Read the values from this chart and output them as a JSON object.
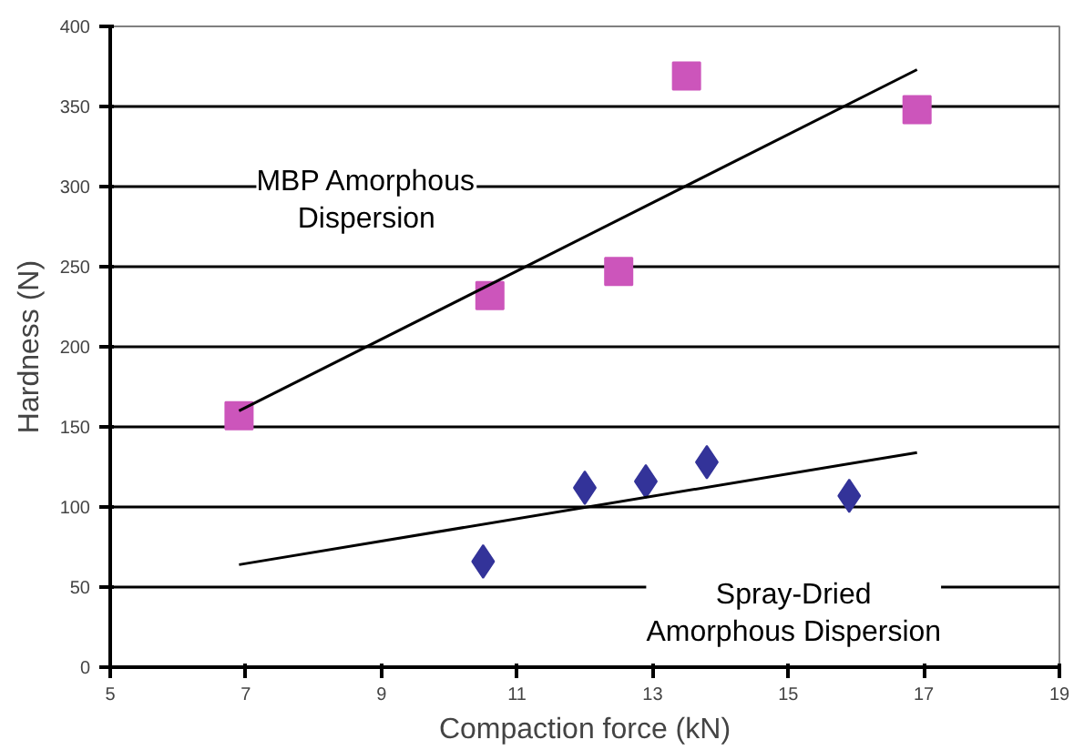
{
  "chart_data": {
    "type": "scatter",
    "xlabel": "Compaction force (kN)",
    "ylabel": "Hardness (N)",
    "xlim": [
      5,
      19
    ],
    "xticks": [
      5,
      7,
      9,
      11,
      13,
      15,
      17,
      19
    ],
    "ylim": [
      0,
      400
    ],
    "yticks": [
      0,
      50,
      100,
      150,
      200,
      250,
      300,
      350,
      400
    ],
    "grid": "y",
    "series": [
      {
        "name": "MBP Amorphous\nDispersion",
        "marker": "square",
        "color": "#cc55bb",
        "x": [
          6.9,
          10.6,
          12.5,
          13.5,
          16.9
        ],
        "values": [
          157,
          232,
          247,
          369,
          348
        ]
      },
      {
        "name": "Spray-Dried\nAmorphous Dispersion",
        "marker": "diamond",
        "color": "#333399",
        "x": [
          10.5,
          12.0,
          12.9,
          13.8,
          15.9
        ],
        "values": [
          66,
          112,
          116,
          128,
          107
        ]
      },
      {
        "type": "line",
        "color": "#000000",
        "x": [
          6.9,
          16.9
        ],
        "values": [
          160,
          373
        ]
      },
      {
        "type": "line",
        "color": "#000000",
        "x": [
          6.9,
          16.9
        ],
        "values": [
          64,
          134
        ]
      }
    ]
  }
}
